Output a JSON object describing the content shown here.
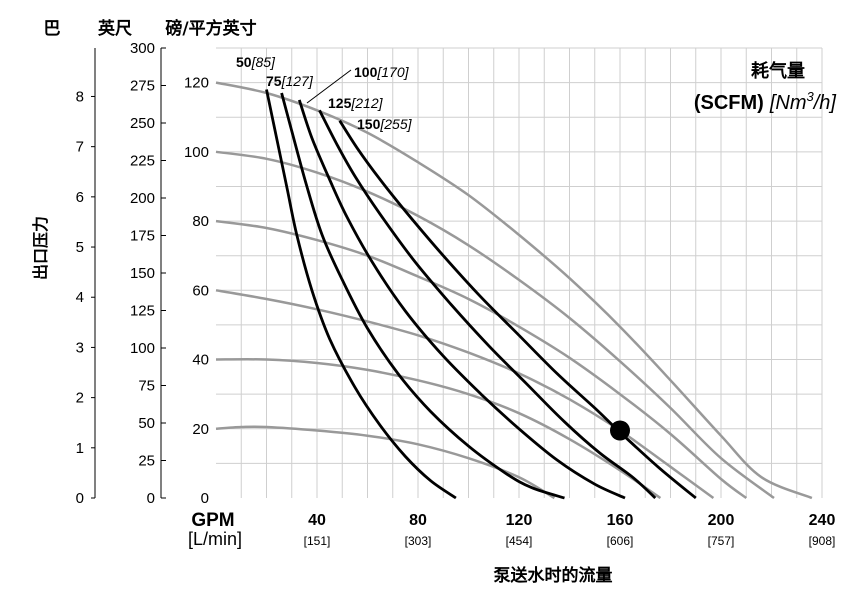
{
  "chart_data": {
    "type": "line",
    "header": {
      "bar": "巴",
      "ft": "英尺",
      "psi": "磅/平方英寸"
    },
    "ylabel": "出口压力",
    "xlabel": "泵送水时的流量",
    "x_units": {
      "gpm": "GPM",
      "lmin": "[L/min]"
    },
    "legend": {
      "title": "耗气量",
      "unit_bold": "(SCFM)",
      "unit_metric_prefix": "[Nm",
      "unit_metric_sup": "3",
      "unit_metric_suffix": "/h]"
    },
    "xlim": [
      0,
      240
    ],
    "ylim_psi": [
      0,
      130
    ],
    "x_ticks": [
      {
        "gpm": "40",
        "lmin": "[151]",
        "v": 40
      },
      {
        "gpm": "80",
        "lmin": "[303]",
        "v": 80
      },
      {
        "gpm": "120",
        "lmin": "[454]",
        "v": 120
      },
      {
        "gpm": "160",
        "lmin": "[606]",
        "v": 160
      },
      {
        "gpm": "200",
        "lmin": "[757]",
        "v": 200
      },
      {
        "gpm": "240",
        "lmin": "[908]",
        "v": 240
      }
    ],
    "psi_ticks": [
      {
        "label": "0",
        "v": 0
      },
      {
        "label": "20",
        "v": 20
      },
      {
        "label": "40",
        "v": 40
      },
      {
        "label": "60",
        "v": 60
      },
      {
        "label": "80",
        "v": 80
      },
      {
        "label": "100",
        "v": 100
      },
      {
        "label": "120",
        "v": 120
      }
    ],
    "ft_ticks": [
      {
        "label": "0",
        "v": 0
      },
      {
        "label": "25",
        "v": 10.83
      },
      {
        "label": "50",
        "v": 21.67
      },
      {
        "label": "75",
        "v": 32.5
      },
      {
        "label": "100",
        "v": 43.33
      },
      {
        "label": "125",
        "v": 54.17
      },
      {
        "label": "150",
        "v": 65
      },
      {
        "label": "175",
        "v": 75.83
      },
      {
        "label": "200",
        "v": 86.67
      },
      {
        "label": "225",
        "v": 97.5
      },
      {
        "label": "250",
        "v": 108.33
      },
      {
        "label": "275",
        "v": 119.17
      },
      {
        "label": "300",
        "v": 130
      }
    ],
    "bar_ticks": [
      {
        "label": "0",
        "v": 0
      },
      {
        "label": "1",
        "v": 14.5
      },
      {
        "label": "2",
        "v": 29
      },
      {
        "label": "3",
        "v": 43.5
      },
      {
        "label": "4",
        "v": 58
      },
      {
        "label": "5",
        "v": 72.5
      },
      {
        "label": "6",
        "v": 87
      },
      {
        "label": "7",
        "v": 101.5
      },
      {
        "label": "8",
        "v": 116
      }
    ],
    "series": [
      {
        "kind": "pressure",
        "name": "20",
        "color": "#999999",
        "points": [
          [
            0,
            20
          ],
          [
            10,
            20.5
          ],
          [
            20,
            20.5
          ],
          [
            40,
            19.5
          ],
          [
            60,
            18
          ],
          [
            80,
            15.5
          ],
          [
            100,
            11.5
          ],
          [
            120,
            6
          ],
          [
            134,
            0
          ]
        ]
      },
      {
        "kind": "pressure",
        "name": "40",
        "color": "#999999",
        "points": [
          [
            0,
            40
          ],
          [
            20,
            40
          ],
          [
            40,
            39
          ],
          [
            60,
            37
          ],
          [
            80,
            34
          ],
          [
            100,
            30
          ],
          [
            120,
            24.5
          ],
          [
            140,
            17
          ],
          [
            160,
            8
          ],
          [
            176,
            0
          ]
        ]
      },
      {
        "kind": "pressure",
        "name": "60",
        "color": "#999999",
        "points": [
          [
            0,
            60
          ],
          [
            20,
            57.5
          ],
          [
            40,
            54.5
          ],
          [
            60,
            51
          ],
          [
            80,
            47
          ],
          [
            100,
            42
          ],
          [
            120,
            36
          ],
          [
            140,
            28.5
          ],
          [
            160,
            19.5
          ],
          [
            180,
            9
          ],
          [
            197,
            0
          ]
        ]
      },
      {
        "kind": "pressure",
        "name": "80",
        "color": "#999999",
        "points": [
          [
            0,
            80
          ],
          [
            20,
            78
          ],
          [
            40,
            74.5
          ],
          [
            60,
            70
          ],
          [
            80,
            64
          ],
          [
            100,
            57.5
          ],
          [
            120,
            49.5
          ],
          [
            140,
            40.5
          ],
          [
            160,
            30
          ],
          [
            180,
            18.5
          ],
          [
            200,
            5.5
          ],
          [
            210,
            0
          ]
        ]
      },
      {
        "kind": "pressure",
        "name": "100",
        "color": "#999999",
        "points": [
          [
            0,
            100
          ],
          [
            20,
            98
          ],
          [
            40,
            94
          ],
          [
            60,
            88.5
          ],
          [
            80,
            81.5
          ],
          [
            100,
            73
          ],
          [
            120,
            63
          ],
          [
            140,
            52
          ],
          [
            160,
            39.5
          ],
          [
            180,
            26
          ],
          [
            200,
            11.5
          ],
          [
            221,
            0
          ]
        ]
      },
      {
        "kind": "pressure",
        "name": "120",
        "color": "#999999",
        "points": [
          [
            0,
            120
          ],
          [
            20,
            117
          ],
          [
            40,
            112
          ],
          [
            60,
            105.5
          ],
          [
            80,
            97
          ],
          [
            100,
            87.5
          ],
          [
            120,
            76
          ],
          [
            140,
            63.5
          ],
          [
            160,
            49.5
          ],
          [
            180,
            34
          ],
          [
            200,
            18
          ],
          [
            216,
            6
          ],
          [
            236,
            0
          ]
        ]
      },
      {
        "kind": "air",
        "name": "50",
        "metric": "[85]",
        "color": "#000000",
        "points": [
          [
            20,
            118
          ],
          [
            24,
            104
          ],
          [
            28,
            90
          ],
          [
            32,
            76
          ],
          [
            38,
            60
          ],
          [
            45,
            46
          ],
          [
            55,
            32
          ],
          [
            65,
            21
          ],
          [
            75,
            12
          ],
          [
            85,
            5
          ],
          [
            95,
            0
          ]
        ]
      },
      {
        "kind": "air",
        "name": "75",
        "metric": "[127]",
        "color": "#000000",
        "points": [
          [
            26,
            117
          ],
          [
            30,
            106
          ],
          [
            36,
            90
          ],
          [
            42,
            76
          ],
          [
            50,
            63
          ],
          [
            60,
            49
          ],
          [
            72,
            36
          ],
          [
            85,
            25
          ],
          [
            100,
            15
          ],
          [
            115,
            7
          ],
          [
            125,
            3
          ],
          [
            138,
            0
          ]
        ]
      },
      {
        "kind": "air",
        "name": "100",
        "metric": "[170]",
        "color": "#000000",
        "points": [
          [
            33,
            115
          ],
          [
            38,
            104
          ],
          [
            45,
            92
          ],
          [
            52,
            81
          ],
          [
            62,
            68
          ],
          [
            75,
            54
          ],
          [
            90,
            41
          ],
          [
            105,
            30
          ],
          [
            120,
            20
          ],
          [
            135,
            11
          ],
          [
            150,
            4
          ],
          [
            162,
            0
          ]
        ]
      },
      {
        "kind": "air",
        "name": "125",
        "metric": "[212]",
        "color": "#000000",
        "points": [
          [
            41,
            112
          ],
          [
            48,
            102
          ],
          [
            55,
            93
          ],
          [
            65,
            82
          ],
          [
            78,
            69
          ],
          [
            93,
            56
          ],
          [
            108,
            44
          ],
          [
            123,
            33
          ],
          [
            138,
            22
          ],
          [
            152,
            13
          ],
          [
            165,
            6
          ],
          [
            174,
            0
          ]
        ]
      },
      {
        "kind": "air",
        "name": "150",
        "metric": "[255]",
        "color": "#000000",
        "points": [
          [
            49,
            109
          ],
          [
            56,
            101
          ],
          [
            65,
            92
          ],
          [
            76,
            82
          ],
          [
            90,
            70
          ],
          [
            105,
            58
          ],
          [
            120,
            47
          ],
          [
            135,
            36
          ],
          [
            150,
            26
          ],
          [
            160,
            19
          ],
          [
            175,
            9
          ],
          [
            190,
            0
          ]
        ]
      }
    ],
    "marker": {
      "x": 160,
      "y": 19.5
    },
    "grid": true
  }
}
